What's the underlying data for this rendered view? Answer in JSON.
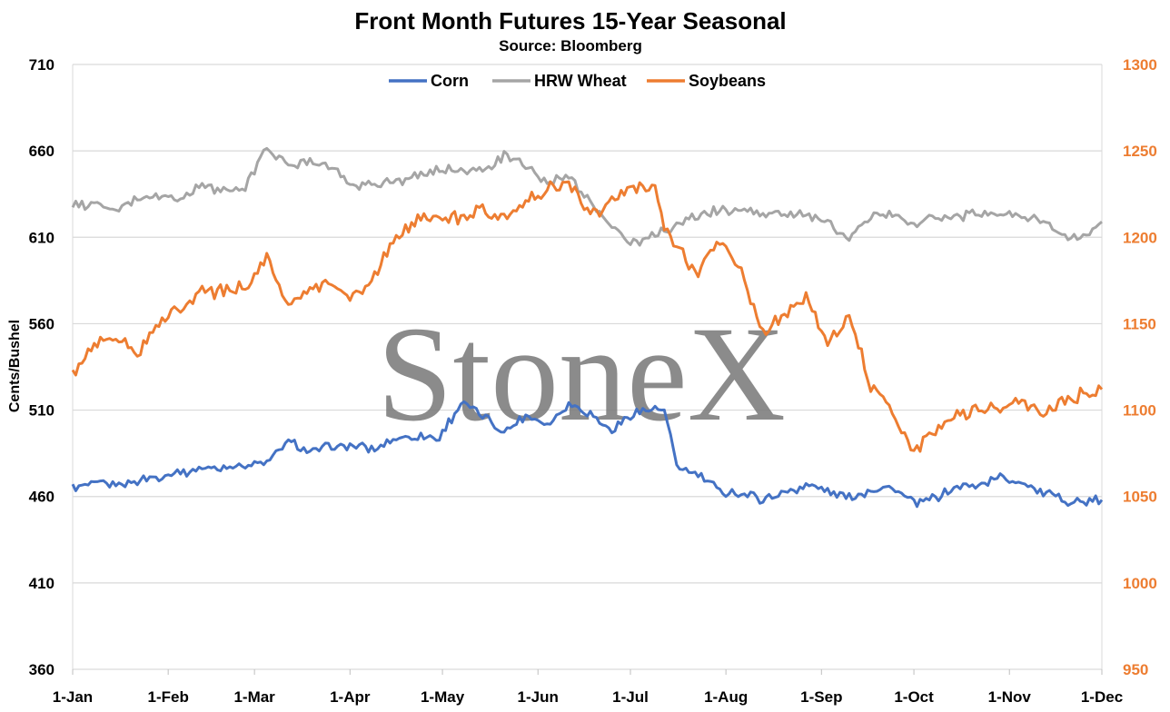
{
  "chart_data": {
    "type": "line",
    "title": "Front Month Futures 15-Year Seasonal",
    "subtitle": "Source: Bloomberg",
    "ylabel": "Cents/Bushel",
    "watermark": "StoneX",
    "ylim": [
      360,
      710
    ],
    "y2lim": [
      950,
      1300
    ],
    "y_ticks": [
      "710",
      "660",
      "610",
      "560",
      "510",
      "460",
      "410",
      "360"
    ],
    "y2_ticks": [
      "1300",
      "1250",
      "1200",
      "1150",
      "1100",
      "1050",
      "1000",
      "950"
    ],
    "x_ticks": [
      "1-Jan",
      "1-Feb",
      "1-Mar",
      "1-Apr",
      "1-May",
      "1-Jun",
      "1-Jul",
      "1-Aug",
      "1-Sep",
      "1-Oct",
      "1-Nov",
      "1-Dec"
    ],
    "grid": true,
    "legend": "top-center",
    "series": [
      {
        "name": "Corn",
        "axis": "left",
        "color": "#4472c4",
        "x": [
          "1-Jan",
          "8-Jan",
          "15-Jan",
          "22-Jan",
          "29-Jan",
          "5-Feb",
          "12-Feb",
          "19-Feb",
          "26-Feb",
          "5-Mar",
          "12-Mar",
          "19-Mar",
          "26-Mar",
          "2-Apr",
          "9-Apr",
          "16-Apr",
          "23-Apr",
          "30-Apr",
          "7-May",
          "14-May",
          "21-May",
          "28-May",
          "4-Jun",
          "11-Jun",
          "18-Jun",
          "25-Jun",
          "2-Jul",
          "9-Jul",
          "12-Jul",
          "16-Jul",
          "23-Jul",
          "30-Jul",
          "6-Aug",
          "13-Aug",
          "20-Aug",
          "27-Aug",
          "3-Sep",
          "10-Sep",
          "17-Sep",
          "24-Sep",
          "1-Oct",
          "8-Oct",
          "15-Oct",
          "22-Oct",
          "29-Oct",
          "5-Nov",
          "12-Nov",
          "19-Nov",
          "26-Nov",
          "1-Dec"
        ],
        "values": [
          465,
          467,
          467,
          469,
          472,
          474,
          476,
          477,
          478,
          479,
          492,
          486,
          489,
          489,
          487,
          494,
          495,
          494,
          514,
          507,
          497,
          507,
          502,
          514,
          508,
          497,
          509,
          511,
          510,
          478,
          472,
          463,
          462,
          458,
          462,
          467,
          463,
          459,
          464,
          465,
          456,
          459,
          466,
          467,
          471,
          469,
          462,
          458,
          456,
          458
        ]
      },
      {
        "name": "HRW Wheat",
        "axis": "left",
        "color": "#a5a5a5",
        "x": [
          "1-Jan",
          "8-Jan",
          "15-Jan",
          "22-Jan",
          "29-Jan",
          "5-Feb",
          "12-Feb",
          "19-Feb",
          "26-Feb",
          "5-Mar",
          "12-Mar",
          "19-Mar",
          "26-Mar",
          "2-Apr",
          "9-Apr",
          "16-Apr",
          "23-Apr",
          "30-Apr",
          "7-May",
          "14-May",
          "21-May",
          "28-May",
          "4-Jun",
          "11-Jun",
          "18-Jun",
          "25-Jun",
          "2-Jul",
          "9-Jul",
          "12-Jul",
          "16-Jul",
          "23-Jul",
          "30-Jul",
          "6-Aug",
          "13-Aug",
          "20-Aug",
          "27-Aug",
          "3-Sep",
          "10-Sep",
          "17-Sep",
          "24-Sep",
          "1-Oct",
          "8-Oct",
          "15-Oct",
          "22-Oct",
          "29-Oct",
          "5-Nov",
          "12-Nov",
          "19-Nov",
          "26-Nov",
          "1-Dec"
        ],
        "values": [
          628,
          630,
          625,
          633,
          634,
          632,
          640,
          637,
          638,
          663,
          651,
          655,
          650,
          640,
          641,
          642,
          645,
          649,
          650,
          648,
          657,
          652,
          641,
          645,
          630,
          617,
          606,
          612,
          614,
          618,
          622,
          626,
          625,
          624,
          624,
          622,
          618,
          609,
          622,
          623,
          618,
          622,
          621,
          624,
          623,
          623,
          620,
          611,
          610,
          619
        ]
      },
      {
        "name": "Soybeans",
        "axis": "right",
        "color": "#ed7d31",
        "x": [
          "1-Jan",
          "8-Jan",
          "15-Jan",
          "22-Jan",
          "29-Jan",
          "5-Feb",
          "12-Feb",
          "19-Feb",
          "26-Feb",
          "5-Mar",
          "12-Mar",
          "19-Mar",
          "26-Mar",
          "2-Apr",
          "9-Apr",
          "16-Apr",
          "23-Apr",
          "30-Apr",
          "7-May",
          "14-May",
          "21-May",
          "28-May",
          "4-Jun",
          "11-Jun",
          "18-Jun",
          "25-Jun",
          "2-Jul",
          "9-Jul",
          "12-Jul",
          "16-Jul",
          "23-Jul",
          "30-Jul",
          "6-Aug",
          "13-Aug",
          "20-Aug",
          "27-Aug",
          "3-Sep",
          "10-Sep",
          "17-Sep",
          "24-Sep",
          "1-Oct",
          "8-Oct",
          "15-Oct",
          "22-Oct",
          "29-Oct",
          "5-Nov",
          "12-Nov",
          "19-Nov",
          "26-Nov",
          "1-Dec"
        ],
        "values": [
          1120,
          1138,
          1142,
          1133,
          1150,
          1160,
          1170,
          1168,
          1172,
          1188,
          1160,
          1170,
          1172,
          1165,
          1178,
          1200,
          1210,
          1212,
          1210,
          1218,
          1210,
          1220,
          1228,
          1232,
          1212,
          1222,
          1230,
          1228,
          1205,
          1194,
          1178,
          1200,
          1180,
          1145,
          1155,
          1166,
          1140,
          1155,
          1115,
          1100,
          1075,
          1088,
          1098,
          1100,
          1102,
          1105,
          1100,
          1105,
          1110,
          1112
        ]
      }
    ]
  }
}
